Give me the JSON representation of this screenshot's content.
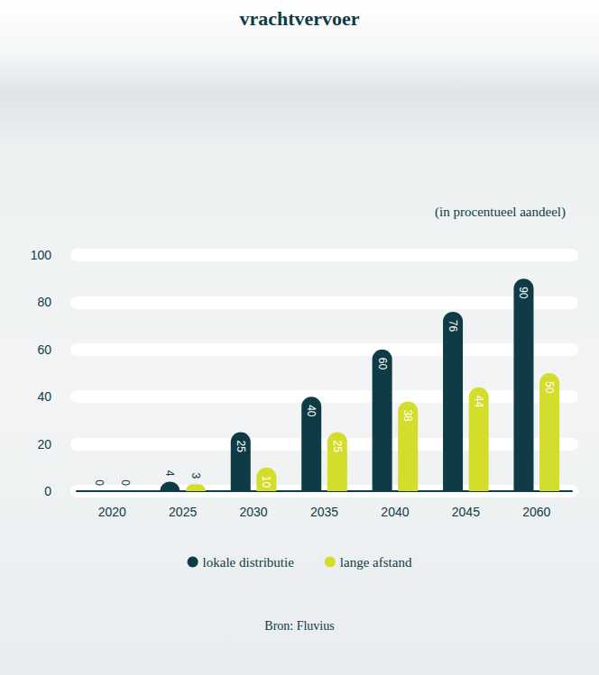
{
  "chart_data": {
    "type": "bar",
    "title": "vrachtvervoer",
    "subtitle": "(in procentueel aandeel)",
    "source": "Bron: Fluvius",
    "categories": [
      "2020",
      "2025",
      "2030",
      "2035",
      "2040",
      "2045",
      "2060"
    ],
    "series": [
      {
        "name": "lokale distributie",
        "color": "#0e3b45",
        "values": [
          0,
          4,
          25,
          40,
          60,
          76,
          90
        ]
      },
      {
        "name": "lange afstand",
        "color": "#d3dd2b",
        "values": [
          0,
          3,
          10,
          25,
          38,
          44,
          50
        ]
      }
    ],
    "ylim": [
      0,
      100
    ],
    "yticks": [
      0,
      20,
      40,
      60,
      80,
      100
    ],
    "grid": true,
    "legend": "bottom",
    "data_labels": true
  }
}
